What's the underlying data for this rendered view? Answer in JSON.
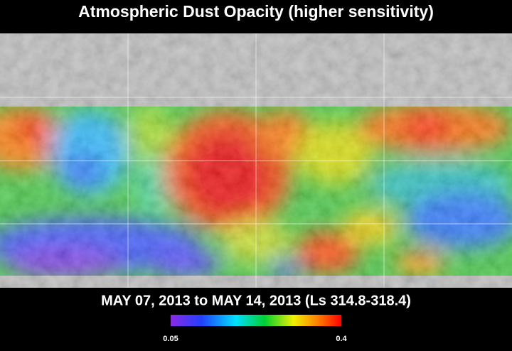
{
  "title": "Atmospheric Dust Opacity (higher sensitivity)",
  "subtitle": "MAY 07, 2013 to MAY 14, 2013 (Ls 314.8-318.4)",
  "colorbar": {
    "min": 0.05,
    "max": 0.4
  }
}
